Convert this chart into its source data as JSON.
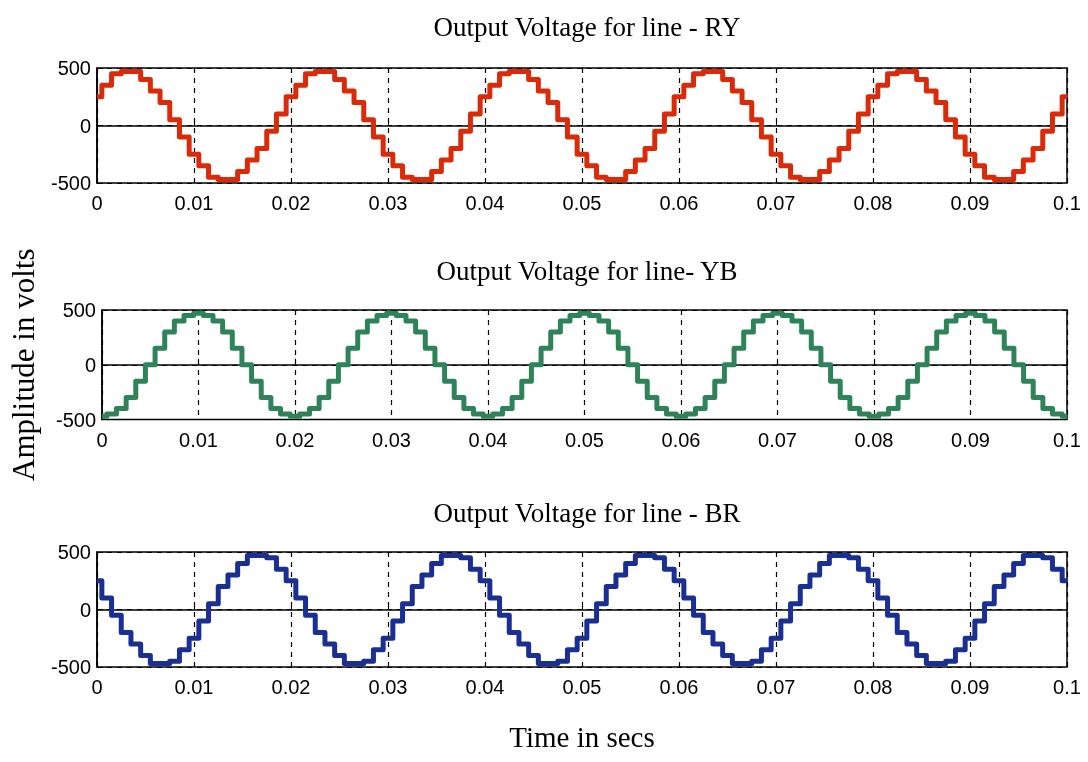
{
  "chart_data": [
    {
      "type": "step",
      "title": "Output Voltage for line - RY",
      "x": [
        0,
        0.001,
        0.002,
        0.003,
        0.004,
        0.005,
        0.006,
        0.007,
        0.008,
        0.009,
        0.01,
        0.011,
        0.012,
        0.013,
        0.014,
        0.015,
        0.016,
        0.017,
        0.018,
        0.019,
        0.02,
        0.021,
        0.022,
        0.023,
        0.024,
        0.025,
        0.026,
        0.027,
        0.028,
        0.029,
        0.03,
        0.031,
        0.032,
        0.033,
        0.034,
        0.035,
        0.036,
        0.037,
        0.038,
        0.039,
        0.04,
        0.041,
        0.042,
        0.043,
        0.044,
        0.045,
        0.046,
        0.047,
        0.048,
        0.049,
        0.05,
        0.051,
        0.052,
        0.053,
        0.054,
        0.055,
        0.056,
        0.057,
        0.058,
        0.059,
        0.06,
        0.061,
        0.062,
        0.063,
        0.064,
        0.065,
        0.066,
        0.067,
        0.068,
        0.069,
        0.07,
        0.071,
        0.072,
        0.073,
        0.074,
        0.075,
        0.076,
        0.077,
        0.078,
        0.079,
        0.08,
        0.081,
        0.082,
        0.083,
        0.084,
        0.085,
        0.086,
        0.087,
        0.088,
        0.089,
        0.09,
        0.091,
        0.092,
        0.093,
        0.094,
        0.095,
        0.096,
        0.097,
        0.098,
        0.099,
        0.1
      ],
      "series": [
        {
          "color": "#d92b0a",
          "values": [
            250,
            350,
            450,
            470,
            470,
            400,
            300,
            200,
            50,
            -100,
            -250,
            -350,
            -450,
            -470,
            -470,
            -400,
            -300,
            -200,
            -50,
            100,
            250,
            350,
            450,
            470,
            470,
            400,
            300,
            200,
            50,
            -100,
            -250,
            -350,
            -450,
            -470,
            -470,
            -400,
            -300,
            -200,
            -50,
            100,
            250,
            350,
            450,
            470,
            470,
            400,
            300,
            200,
            50,
            -100,
            -250,
            -350,
            -450,
            -470,
            -470,
            -400,
            -300,
            -200,
            -50,
            100,
            250,
            350,
            450,
            470,
            470,
            400,
            300,
            200,
            50,
            -100,
            -250,
            -350,
            -450,
            -470,
            -470,
            -400,
            -300,
            -200,
            -50,
            100,
            250,
            350,
            450,
            470,
            470,
            400,
            300,
            200,
            50,
            -100,
            -250,
            -350,
            -450,
            -470,
            -470,
            -400,
            -300,
            -200,
            -50,
            100,
            250
          ]
        }
      ],
      "xlim": [
        0,
        0.1
      ],
      "xticks": [
        0,
        0.01,
        0.02,
        0.03,
        0.04,
        0.05,
        0.06,
        0.07,
        0.08,
        0.09,
        0.1
      ],
      "ylim": [
        -500,
        500
      ],
      "yticks": [
        -500,
        0,
        500
      ],
      "grid": true,
      "line_style": "solid"
    },
    {
      "type": "step",
      "title": "Output Voltage for line- YB",
      "ylabel": "Amplitude in volts",
      "x": [
        0,
        0.001,
        0.002,
        0.003,
        0.004,
        0.005,
        0.006,
        0.007,
        0.008,
        0.009,
        0.01,
        0.011,
        0.012,
        0.013,
        0.014,
        0.015,
        0.016,
        0.017,
        0.018,
        0.019,
        0.02,
        0.021,
        0.022,
        0.023,
        0.024,
        0.025,
        0.026,
        0.027,
        0.028,
        0.029,
        0.03,
        0.031,
        0.032,
        0.033,
        0.034,
        0.035,
        0.036,
        0.037,
        0.038,
        0.039,
        0.04,
        0.041,
        0.042,
        0.043,
        0.044,
        0.045,
        0.046,
        0.047,
        0.048,
        0.049,
        0.05,
        0.051,
        0.052,
        0.053,
        0.054,
        0.055,
        0.056,
        0.057,
        0.058,
        0.059,
        0.06,
        0.061,
        0.062,
        0.063,
        0.064,
        0.065,
        0.066,
        0.067,
        0.068,
        0.069,
        0.07,
        0.071,
        0.072,
        0.073,
        0.074,
        0.075,
        0.076,
        0.077,
        0.078,
        0.079,
        0.08,
        0.081,
        0.082,
        0.083,
        0.084,
        0.085,
        0.086,
        0.087,
        0.088,
        0.089,
        0.09,
        0.091,
        0.092,
        0.093,
        0.094,
        0.095,
        0.096,
        0.097,
        0.098,
        0.099,
        0.1
      ],
      "series": [
        {
          "color": "#2e8458",
          "values": [
            -470,
            -450,
            -400,
            -300,
            -150,
            0,
            150,
            300,
            400,
            450,
            470,
            450,
            400,
            300,
            150,
            0,
            -150,
            -300,
            -400,
            -450,
            -470,
            -450,
            -400,
            -300,
            -150,
            0,
            150,
            300,
            400,
            450,
            470,
            450,
            400,
            300,
            150,
            0,
            -150,
            -300,
            -400,
            -450,
            -470,
            -450,
            -400,
            -300,
            -150,
            0,
            150,
            300,
            400,
            450,
            470,
            450,
            400,
            300,
            150,
            0,
            -150,
            -300,
            -400,
            -450,
            -470,
            -450,
            -400,
            -300,
            -150,
            0,
            150,
            300,
            400,
            450,
            470,
            450,
            400,
            300,
            150,
            0,
            -150,
            -300,
            -400,
            -450,
            -470,
            -450,
            -400,
            -300,
            -150,
            0,
            150,
            300,
            400,
            450,
            470,
            450,
            400,
            300,
            150,
            0,
            -150,
            -300,
            -400,
            -450,
            -470
          ]
        }
      ],
      "xlim": [
        0,
        0.1
      ],
      "xticks": [
        0,
        0.01,
        0.02,
        0.03,
        0.04,
        0.05,
        0.06,
        0.07,
        0.08,
        0.09,
        0.1
      ],
      "ylim": [
        -500,
        500
      ],
      "yticks": [
        -500,
        0,
        500
      ],
      "grid": true,
      "line_style": "solid"
    },
    {
      "type": "step",
      "title": "Output Voltage for line - BR",
      "xlabel": "Time in secs",
      "x": [
        0,
        0.001,
        0.002,
        0.003,
        0.004,
        0.005,
        0.006,
        0.007,
        0.008,
        0.009,
        0.01,
        0.011,
        0.012,
        0.013,
        0.014,
        0.015,
        0.016,
        0.017,
        0.018,
        0.019,
        0.02,
        0.021,
        0.022,
        0.023,
        0.024,
        0.025,
        0.026,
        0.027,
        0.028,
        0.029,
        0.03,
        0.031,
        0.032,
        0.033,
        0.034,
        0.035,
        0.036,
        0.037,
        0.038,
        0.039,
        0.04,
        0.041,
        0.042,
        0.043,
        0.044,
        0.045,
        0.046,
        0.047,
        0.048,
        0.049,
        0.05,
        0.051,
        0.052,
        0.053,
        0.054,
        0.055,
        0.056,
        0.057,
        0.058,
        0.059,
        0.06,
        0.061,
        0.062,
        0.063,
        0.064,
        0.065,
        0.066,
        0.067,
        0.068,
        0.069,
        0.07,
        0.071,
        0.072,
        0.073,
        0.074,
        0.075,
        0.076,
        0.077,
        0.078,
        0.079,
        0.08,
        0.081,
        0.082,
        0.083,
        0.084,
        0.085,
        0.086,
        0.087,
        0.088,
        0.089,
        0.09,
        0.091,
        0.092,
        0.093,
        0.094,
        0.095,
        0.096,
        0.097,
        0.098,
        0.099,
        0.1
      ],
      "series": [
        {
          "color": "#1a2f94",
          "values": [
            250,
            100,
            -50,
            -200,
            -300,
            -400,
            -470,
            -470,
            -450,
            -350,
            -250,
            -100,
            50,
            200,
            300,
            400,
            470,
            470,
            450,
            350,
            250,
            100,
            -50,
            -200,
            -300,
            -400,
            -470,
            -470,
            -450,
            -350,
            -250,
            -100,
            50,
            200,
            300,
            400,
            470,
            470,
            450,
            350,
            250,
            100,
            -50,
            -200,
            -300,
            -400,
            -470,
            -470,
            -450,
            -350,
            -250,
            -100,
            50,
            200,
            300,
            400,
            470,
            470,
            450,
            350,
            250,
            100,
            -50,
            -200,
            -300,
            -400,
            -470,
            -470,
            -450,
            -350,
            -250,
            -100,
            50,
            200,
            300,
            400,
            470,
            470,
            450,
            350,
            250,
            100,
            -50,
            -200,
            -300,
            -400,
            -470,
            -470,
            -450,
            -350,
            -250,
            -100,
            50,
            200,
            300,
            400,
            470,
            470,
            450,
            350,
            250
          ]
        }
      ],
      "xlim": [
        0,
        0.1
      ],
      "xticks": [
        0,
        0.01,
        0.02,
        0.03,
        0.04,
        0.05,
        0.06,
        0.07,
        0.08,
        0.09,
        0.1
      ],
      "ylim": [
        -500,
        500
      ],
      "yticks": [
        -500,
        0,
        500
      ],
      "grid": true,
      "line_style": "solid"
    }
  ]
}
